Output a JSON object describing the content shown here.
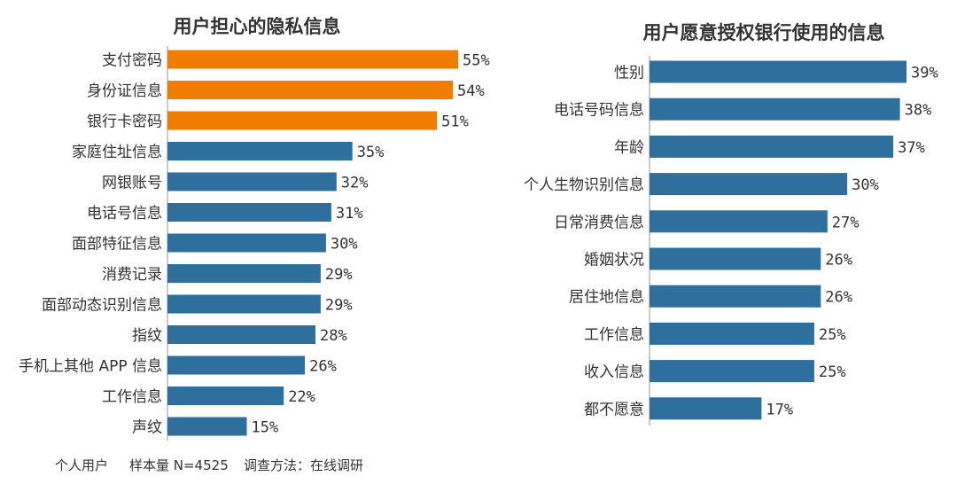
{
  "chart_data": [
    {
      "type": "bar",
      "orientation": "horizontal",
      "title": "用户担心的隐私信息",
      "categories": [
        "支付密码",
        "身份证信息",
        "银行卡密码",
        "家庭住址信息",
        "网银账号",
        "电话号信息",
        "面部特征信息",
        "消费记录",
        "面部动态识别信息",
        "指纹",
        "手机上其他 APP 信息",
        "工作信息",
        "声纹"
      ],
      "values": [
        55,
        54,
        51,
        35,
        32,
        31,
        30,
        29,
        29,
        28,
        26,
        22,
        15
      ],
      "labels": [
        "55%",
        "54%",
        "51%",
        "35%",
        "32%",
        "31%",
        "30%",
        "29%",
        "29%",
        "28%",
        "26%",
        "22%",
        "15%"
      ],
      "highlight_count": 3,
      "colors": {
        "highlight": "#f07c00",
        "default": "#2e6f9e"
      },
      "xlabel": "",
      "ylabel": "",
      "xlim": [
        0,
        55
      ]
    },
    {
      "type": "bar",
      "orientation": "horizontal",
      "title": "用户愿意授权银行使用的信息",
      "categories": [
        "性别",
        "电话号码信息",
        "年龄",
        "个人生物识别信息",
        "日常消费信息",
        "婚姻状况",
        "居住地信息",
        "工作信息",
        "收入信息",
        "都不愿意"
      ],
      "values": [
        39,
        38,
        37,
        30,
        27,
        26,
        26,
        25,
        25,
        17
      ],
      "labels": [
        "39%",
        "38%",
        "37%",
        "30%",
        "27%",
        "26%",
        "26%",
        "25%",
        "25%",
        "17%"
      ],
      "highlight_count": 0,
      "colors": {
        "highlight": "#f07c00",
        "default": "#2e6f9e"
      },
      "xlabel": "",
      "ylabel": "",
      "xlim": [
        0,
        39
      ]
    }
  ],
  "footnote": {
    "audience": "个人用户",
    "sample": "样本量 N=4525",
    "method": "调查方法：在线调研"
  }
}
